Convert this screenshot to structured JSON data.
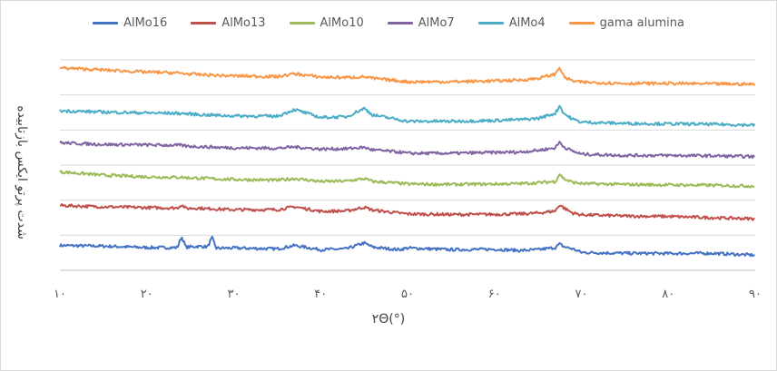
{
  "chart_data": {
    "type": "line",
    "xlabel": "۲Θ(°)",
    "ylabel": "شدت پرتو ایکس بازتابیده",
    "xlim": [
      10,
      90
    ],
    "ylim": [
      0,
      100
    ],
    "grid": true,
    "legend_position": "top",
    "x_tick_labels": [
      "۱۰",
      "۲۰",
      "۳۰",
      "۴۰",
      "۵۰",
      "۶۰",
      "۷۰",
      "۸۰",
      "۹۰"
    ],
    "x_ticks": [
      10,
      20,
      30,
      40,
      50,
      60,
      70,
      80,
      90
    ],
    "x": [
      10,
      15,
      20,
      23.5,
      24,
      24.5,
      26,
      27,
      27.5,
      28,
      30,
      35,
      37,
      40,
      43,
      45,
      46,
      49,
      50,
      55,
      60,
      63,
      65,
      67,
      67.5,
      68,
      69,
      70,
      75,
      80,
      85,
      90
    ],
    "series": [
      {
        "name": "AlMo16",
        "color": "#4472c4",
        "values": [
          11.8,
          11.5,
          10.8,
          10.8,
          16,
          11,
          11.4,
          11.2,
          15.5,
          10.5,
          10.6,
          10.2,
          11.8,
          9.8,
          10.2,
          13,
          11,
          9.8,
          10.6,
          9.8,
          10,
          9.4,
          9.8,
          10.8,
          12.5,
          11.2,
          10.2,
          8.5,
          8.1,
          8.0,
          8.1,
          7.2
        ]
      },
      {
        "name": "AlMo13",
        "color": "#c0504d",
        "values": [
          30.8,
          30.2,
          29.8,
          29.6,
          31.2,
          29.4,
          29.6,
          29.2,
          29.4,
          29.1,
          28.8,
          28.8,
          30.2,
          28.0,
          28.2,
          30.0,
          28.6,
          27.2,
          26.8,
          26.5,
          26.6,
          26.8,
          27.2,
          28.2,
          31.2,
          29.6,
          27.2,
          26.4,
          25.8,
          25.6,
          25.0,
          24.5
        ]
      },
      {
        "name": "AlMo10",
        "color": "#9bbb59",
        "values": [
          46.8,
          45.2,
          44.4,
          44.2,
          44.3,
          44.0,
          43.8,
          43.6,
          43.6,
          43.4,
          43.2,
          42.8,
          43.6,
          42.2,
          42.4,
          43.6,
          42.2,
          41.4,
          41.0,
          40.8,
          41.0,
          41.2,
          41.6,
          42.2,
          45.8,
          43.4,
          41.8,
          41.2,
          40.8,
          40.6,
          40.4,
          40.0
        ]
      },
      {
        "name": "AlMo7",
        "color": "#8064a2",
        "values": [
          60.6,
          59.8,
          59.6,
          59.4,
          59.4,
          59.0,
          58.8,
          58.6,
          58.6,
          58.4,
          58.2,
          58.0,
          58.6,
          57.6,
          57.8,
          58.4,
          57.2,
          56.2,
          55.6,
          55.6,
          56.0,
          56.2,
          57.0,
          58.2,
          61.0,
          58.6,
          56.6,
          55.2,
          54.6,
          54.6,
          54.4,
          54.0
        ]
      },
      {
        "name": "AlMo4",
        "color": "#4bacc6",
        "values": [
          75.8,
          75.2,
          74.8,
          74.6,
          74.6,
          74.4,
          74.0,
          73.8,
          73.8,
          73.6,
          73.4,
          73.2,
          76.4,
          72.6,
          73.0,
          77.0,
          73.8,
          71.6,
          70.8,
          70.8,
          71.2,
          71.6,
          72.2,
          74.6,
          78.2,
          74.4,
          71.8,
          70.4,
          69.8,
          69.6,
          69.4,
          69.0
        ]
      },
      {
        "name": "gama alumina",
        "color": "#f79646",
        "values": [
          96.2,
          95.2,
          94.2,
          93.8,
          93.6,
          93.4,
          93.0,
          92.8,
          92.8,
          92.6,
          92.4,
          92.0,
          93.4,
          91.8,
          91.6,
          92.0,
          91.2,
          90.0,
          89.6,
          89.6,
          90.0,
          90.4,
          91.2,
          93.2,
          96.6,
          91.8,
          90.0,
          89.4,
          88.8,
          88.8,
          88.6,
          88.4
        ]
      }
    ]
  }
}
